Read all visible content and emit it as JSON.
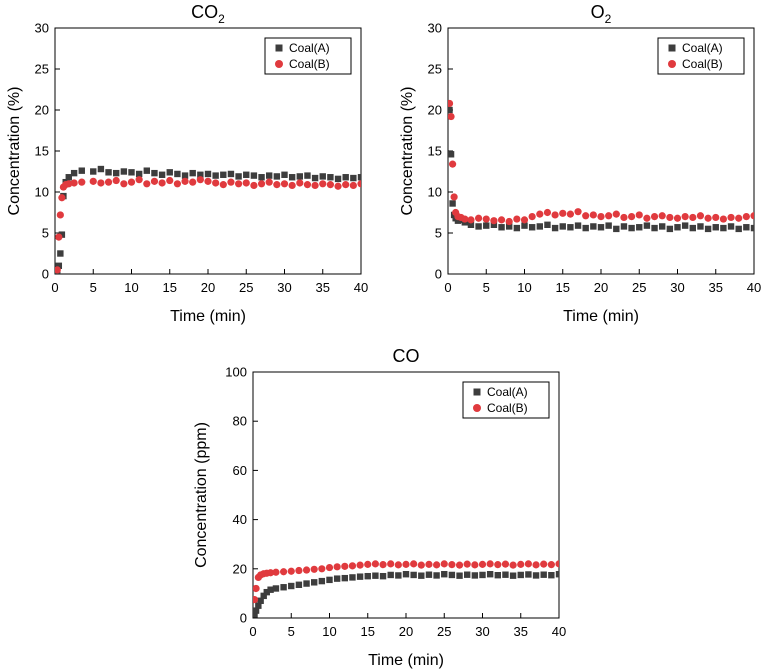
{
  "chart_data": [
    {
      "type": "scatter",
      "title": "CO",
      "title_sub": "2",
      "xlabel": "Time (min)",
      "ylabel": "Concentration (%)",
      "xlim": [
        0,
        40
      ],
      "ylim": [
        0,
        30
      ],
      "xticks": [
        0,
        5,
        10,
        15,
        20,
        25,
        30,
        35,
        40
      ],
      "yticks": [
        0,
        5,
        10,
        15,
        20,
        25,
        30
      ],
      "grid": false,
      "legend_position": "top-right",
      "series": [
        {
          "name": "Coal(A)",
          "marker": "square",
          "color": "#3d3d3d",
          "x": [
            0.3,
            0.5,
            0.7,
            0.9,
            1.1,
            1.4,
            1.8,
            2.5,
            3.5,
            5,
            6,
            7,
            8,
            9,
            10,
            11,
            12,
            13,
            14,
            15,
            16,
            17,
            18,
            19,
            20,
            21,
            22,
            23,
            24,
            25,
            26,
            27,
            28,
            29,
            30,
            31,
            32,
            33,
            34,
            35,
            36,
            37,
            38,
            39,
            40
          ],
          "y": [
            0.2,
            1.0,
            2.5,
            4.8,
            9.5,
            11.2,
            11.8,
            12.3,
            12.6,
            12.5,
            12.8,
            12.4,
            12.3,
            12.5,
            12.4,
            12.2,
            12.6,
            12.3,
            12.1,
            12.4,
            12.2,
            12.0,
            12.3,
            12.1,
            12.2,
            12.0,
            12.1,
            12.2,
            11.9,
            12.1,
            12.0,
            11.8,
            12.0,
            11.9,
            12.1,
            11.8,
            11.9,
            12.0,
            11.7,
            11.9,
            11.8,
            11.6,
            11.8,
            11.7,
            11.8
          ]
        },
        {
          "name": "Coal(B)",
          "marker": "circle",
          "color": "#e03a3e",
          "x": [
            0.3,
            0.5,
            0.7,
            0.9,
            1.1,
            1.4,
            1.8,
            2.5,
            3.5,
            5,
            6,
            7,
            8,
            9,
            10,
            11,
            12,
            13,
            14,
            15,
            16,
            17,
            18,
            19,
            20,
            21,
            22,
            23,
            24,
            25,
            26,
            27,
            28,
            29,
            30,
            31,
            32,
            33,
            34,
            35,
            36,
            37,
            38,
            39,
            40
          ],
          "y": [
            0.5,
            4.5,
            7.2,
            9.3,
            10.6,
            10.9,
            11.0,
            11.1,
            11.2,
            11.3,
            11.1,
            11.2,
            11.4,
            11.0,
            11.2,
            11.5,
            11.0,
            11.3,
            11.1,
            11.4,
            11.0,
            11.3,
            11.2,
            11.5,
            11.3,
            11.1,
            10.9,
            11.2,
            11.0,
            11.1,
            10.8,
            11.0,
            11.2,
            10.9,
            11.0,
            10.8,
            11.1,
            10.9,
            10.8,
            11.0,
            10.9,
            10.7,
            10.9,
            10.8,
            11.0
          ]
        }
      ]
    },
    {
      "type": "scatter",
      "title": "O",
      "title_sub": "2",
      "xlabel": "Time (min)",
      "ylabel": "Concentration (%)",
      "xlim": [
        0,
        40
      ],
      "ylim": [
        0,
        30
      ],
      "xticks": [
        0,
        5,
        10,
        15,
        20,
        25,
        30,
        35,
        40
      ],
      "yticks": [
        0,
        5,
        10,
        15,
        20,
        25,
        30
      ],
      "grid": false,
      "legend_position": "top-right",
      "series": [
        {
          "name": "Coal(A)",
          "marker": "square",
          "color": "#3d3d3d",
          "x": [
            0.2,
            0.4,
            0.6,
            0.8,
            1.0,
            1.3,
            1.7,
            2.2,
            3,
            4,
            5,
            6,
            7,
            8,
            9,
            10,
            11,
            12,
            13,
            14,
            15,
            16,
            17,
            18,
            19,
            20,
            21,
            22,
            23,
            24,
            25,
            26,
            27,
            28,
            29,
            30,
            31,
            32,
            33,
            34,
            35,
            36,
            37,
            38,
            39,
            40
          ],
          "y": [
            20.0,
            14.6,
            8.6,
            7.2,
            6.8,
            6.5,
            6.6,
            6.3,
            6.0,
            5.8,
            5.9,
            6.0,
            5.7,
            5.8,
            5.6,
            5.9,
            5.7,
            5.8,
            6.0,
            5.6,
            5.8,
            5.7,
            5.9,
            5.6,
            5.8,
            5.7,
            5.9,
            5.5,
            5.8,
            5.6,
            5.7,
            5.9,
            5.6,
            5.8,
            5.5,
            5.7,
            5.9,
            5.6,
            5.8,
            5.5,
            5.7,
            5.6,
            5.8,
            5.5,
            5.7,
            5.6
          ]
        },
        {
          "name": "Coal(B)",
          "marker": "circle",
          "color": "#e03a3e",
          "x": [
            0.2,
            0.4,
            0.6,
            0.8,
            1.0,
            1.3,
            1.7,
            2.2,
            3,
            4,
            5,
            6,
            7,
            8,
            9,
            10,
            11,
            12,
            13,
            14,
            15,
            16,
            17,
            18,
            19,
            20,
            21,
            22,
            23,
            24,
            25,
            26,
            27,
            28,
            29,
            30,
            31,
            32,
            33,
            34,
            35,
            36,
            37,
            38,
            39,
            40
          ],
          "y": [
            20.8,
            19.2,
            13.4,
            9.4,
            7.5,
            7.0,
            6.9,
            6.7,
            6.6,
            6.8,
            6.7,
            6.5,
            6.6,
            6.4,
            6.7,
            6.6,
            7.0,
            7.3,
            7.5,
            7.2,
            7.4,
            7.3,
            7.6,
            7.1,
            7.2,
            7.0,
            7.1,
            7.3,
            6.9,
            7.0,
            7.2,
            6.8,
            7.0,
            7.1,
            6.9,
            6.8,
            7.0,
            6.9,
            7.1,
            6.8,
            6.9,
            6.7,
            6.9,
            6.8,
            7.0,
            7.1
          ]
        }
      ]
    },
    {
      "type": "scatter",
      "title": "CO",
      "title_sub": "",
      "xlabel": "Time (min)",
      "ylabel": "Concentration (ppm)",
      "xlim": [
        0,
        40
      ],
      "ylim": [
        0,
        100
      ],
      "xticks": [
        0,
        5,
        10,
        15,
        20,
        25,
        30,
        35,
        40
      ],
      "yticks": [
        0,
        20,
        40,
        60,
        80,
        100
      ],
      "grid": false,
      "legend_position": "top-right",
      "series": [
        {
          "name": "Coal(A)",
          "marker": "square",
          "color": "#3d3d3d",
          "x": [
            0.2,
            0.4,
            0.7,
            1.0,
            1.4,
            1.8,
            2.3,
            3,
            4,
            5,
            6,
            7,
            8,
            9,
            10,
            11,
            12,
            13,
            14,
            15,
            16,
            17,
            18,
            19,
            20,
            21,
            22,
            23,
            24,
            25,
            26,
            27,
            28,
            29,
            30,
            31,
            32,
            33,
            34,
            35,
            36,
            37,
            38,
            39,
            40
          ],
          "y": [
            1.5,
            3.0,
            5.0,
            7.0,
            9.0,
            10.5,
            11.5,
            12.0,
            12.5,
            13.0,
            13.5,
            14.0,
            14.5,
            15.0,
            15.5,
            16.0,
            16.2,
            16.5,
            16.8,
            17.0,
            17.2,
            17.0,
            17.5,
            17.3,
            17.8,
            17.5,
            17.2,
            17.6,
            17.3,
            17.8,
            17.5,
            17.2,
            17.6,
            17.3,
            17.5,
            17.8,
            17.4,
            17.6,
            17.2,
            17.5,
            17.7,
            17.3,
            17.6,
            17.4,
            17.8
          ]
        },
        {
          "name": "Coal(B)",
          "marker": "circle",
          "color": "#e03a3e",
          "x": [
            0.2,
            0.4,
            0.7,
            1.0,
            1.4,
            1.8,
            2.3,
            3,
            4,
            5,
            6,
            7,
            8,
            9,
            10,
            11,
            12,
            13,
            14,
            15,
            16,
            17,
            18,
            19,
            20,
            21,
            22,
            23,
            24,
            25,
            26,
            27,
            28,
            29,
            30,
            31,
            32,
            33,
            34,
            35,
            36,
            37,
            38,
            39,
            40
          ],
          "y": [
            7.5,
            12.0,
            16.5,
            17.5,
            18.0,
            18.2,
            18.4,
            18.6,
            18.8,
            19.0,
            19.3,
            19.5,
            19.8,
            20.0,
            20.5,
            20.8,
            21.0,
            21.2,
            21.5,
            21.8,
            22.0,
            21.7,
            22.0,
            21.6,
            21.8,
            22.0,
            21.5,
            21.8,
            21.6,
            22.0,
            21.7,
            21.5,
            21.9,
            21.6,
            21.8,
            22.0,
            21.7,
            21.9,
            21.5,
            21.8,
            22.0,
            21.6,
            21.9,
            21.7,
            22.0
          ]
        }
      ]
    }
  ]
}
